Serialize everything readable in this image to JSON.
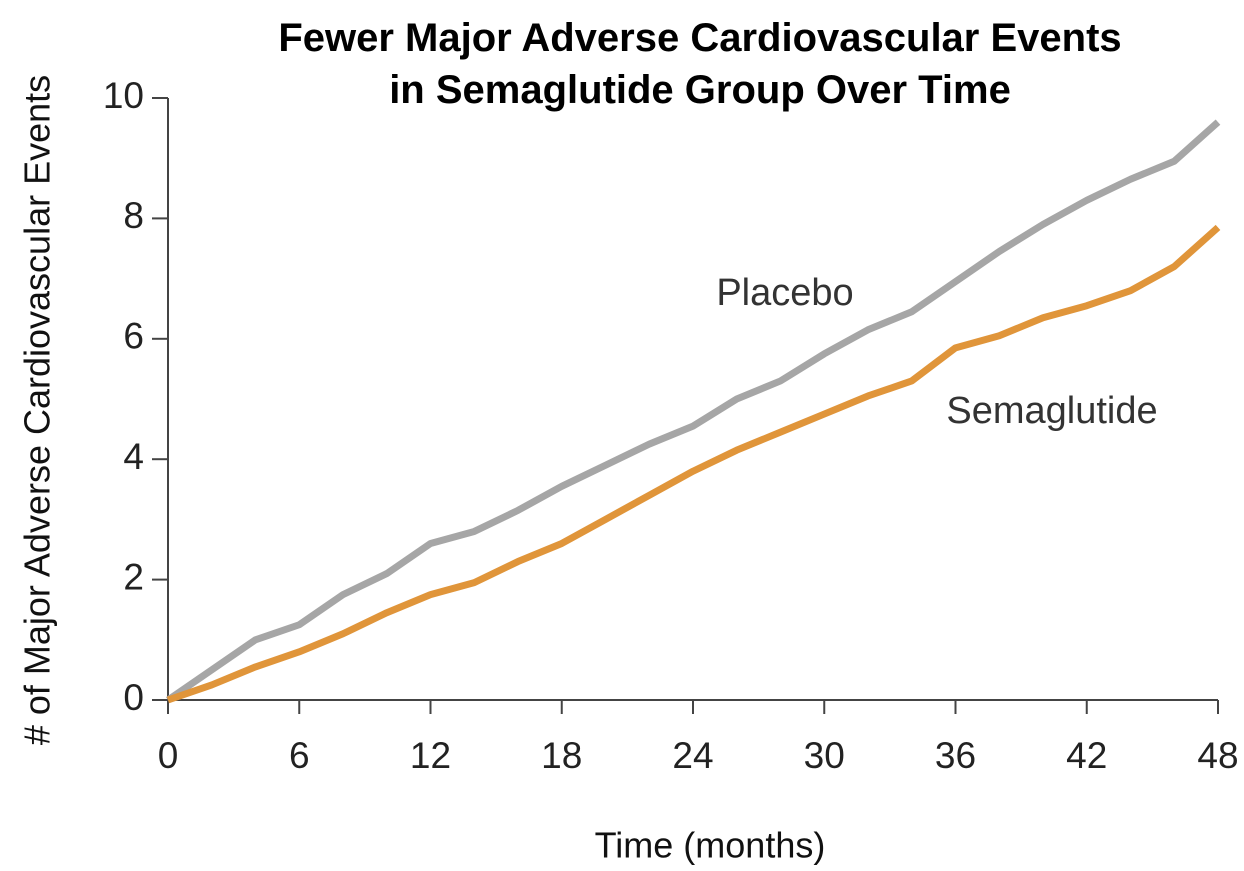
{
  "chart_data": {
    "type": "line",
    "title": "Fewer Major Adverse Cardiovascular Events\nin Semaglutide Group Over Time",
    "x_label": "Time (months)",
    "y_label": "# of Major Adverse Cardiovascular Events",
    "x": [
      0,
      2,
      4,
      6,
      8,
      10,
      12,
      14,
      16,
      18,
      20,
      22,
      24,
      26,
      28,
      30,
      32,
      34,
      36,
      38,
      40,
      42,
      44,
      46,
      48
    ],
    "series": [
      {
        "name": "Placebo",
        "color": "#a6a6a6",
        "values": [
          0,
          0.5,
          1.0,
          1.25,
          1.75,
          2.1,
          2.6,
          2.8,
          3.15,
          3.55,
          3.9,
          4.25,
          4.55,
          5.0,
          5.3,
          5.75,
          6.15,
          6.45,
          6.95,
          7.45,
          7.9,
          8.3,
          8.65,
          8.95,
          9.6
        ]
      },
      {
        "name": "Semaglutide",
        "color": "#e0953a",
        "values": [
          0,
          0.25,
          0.55,
          0.8,
          1.1,
          1.45,
          1.75,
          1.95,
          2.3,
          2.6,
          3.0,
          3.4,
          3.8,
          4.15,
          4.45,
          4.75,
          5.05,
          5.3,
          5.85,
          6.05,
          6.35,
          6.55,
          6.8,
          7.2,
          7.85
        ]
      }
    ],
    "xlim": [
      0,
      48
    ],
    "xticks": [
      0,
      6,
      12,
      18,
      24,
      30,
      36,
      42,
      48
    ],
    "ylim": [
      0,
      10
    ],
    "yticks": [
      0,
      2,
      4,
      6,
      8,
      10
    ],
    "grid": false,
    "legend": "inline"
  }
}
